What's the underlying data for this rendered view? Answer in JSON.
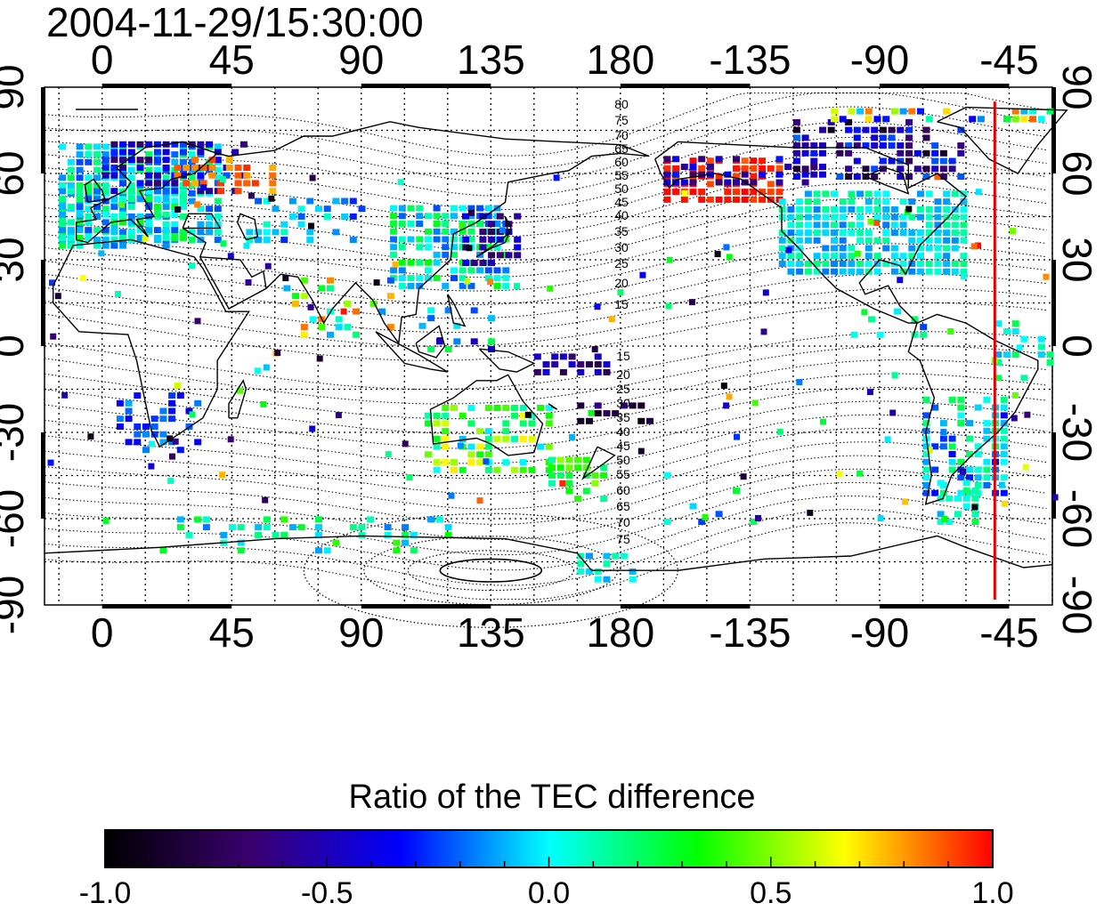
{
  "timestamp": "2004-11-29/15:30:00",
  "top_longitude_ticks": [
    "0",
    "45",
    "90",
    "135",
    "180",
    "-135",
    "-90",
    "-45"
  ],
  "bottom_longitude_ticks": [
    "0",
    "45",
    "90",
    "135",
    "180",
    "-135",
    "-90",
    "-45"
  ],
  "left_latitude_ticks": [
    "90",
    "60",
    "30",
    "0",
    "-30",
    "-60",
    "-90"
  ],
  "right_latitude_ticks": [
    "90",
    "60",
    "30",
    "0",
    "-30",
    "-60",
    "-90"
  ],
  "north_contour_labels": [
    "80",
    "75",
    "70",
    "65",
    "60",
    "55",
    "50",
    "45",
    "40",
    "35",
    "30",
    "25",
    "20",
    "15"
  ],
  "south_contour_labels": [
    "15",
    "20",
    "25",
    "30",
    "35",
    "40",
    "45",
    "50",
    "55",
    "60",
    "65",
    "70",
    "75"
  ],
  "colorbar": {
    "label": "Ratio of the TEC difference",
    "ticks": [
      "-1.0",
      "-0.5",
      "0.0",
      "0.5",
      "1.0"
    ],
    "range": [
      -1.0,
      1.0
    ],
    "colors": [
      "#000000",
      "#3a0070",
      "#0000ff",
      "#00ffff",
      "#00ff00",
      "#ffff00",
      "#ff0000"
    ]
  },
  "map": {
    "longitude_range": [
      -20,
      330
    ],
    "latitude_range": [
      -90,
      90
    ],
    "red_marker_longitude": -50,
    "grid": true
  }
}
